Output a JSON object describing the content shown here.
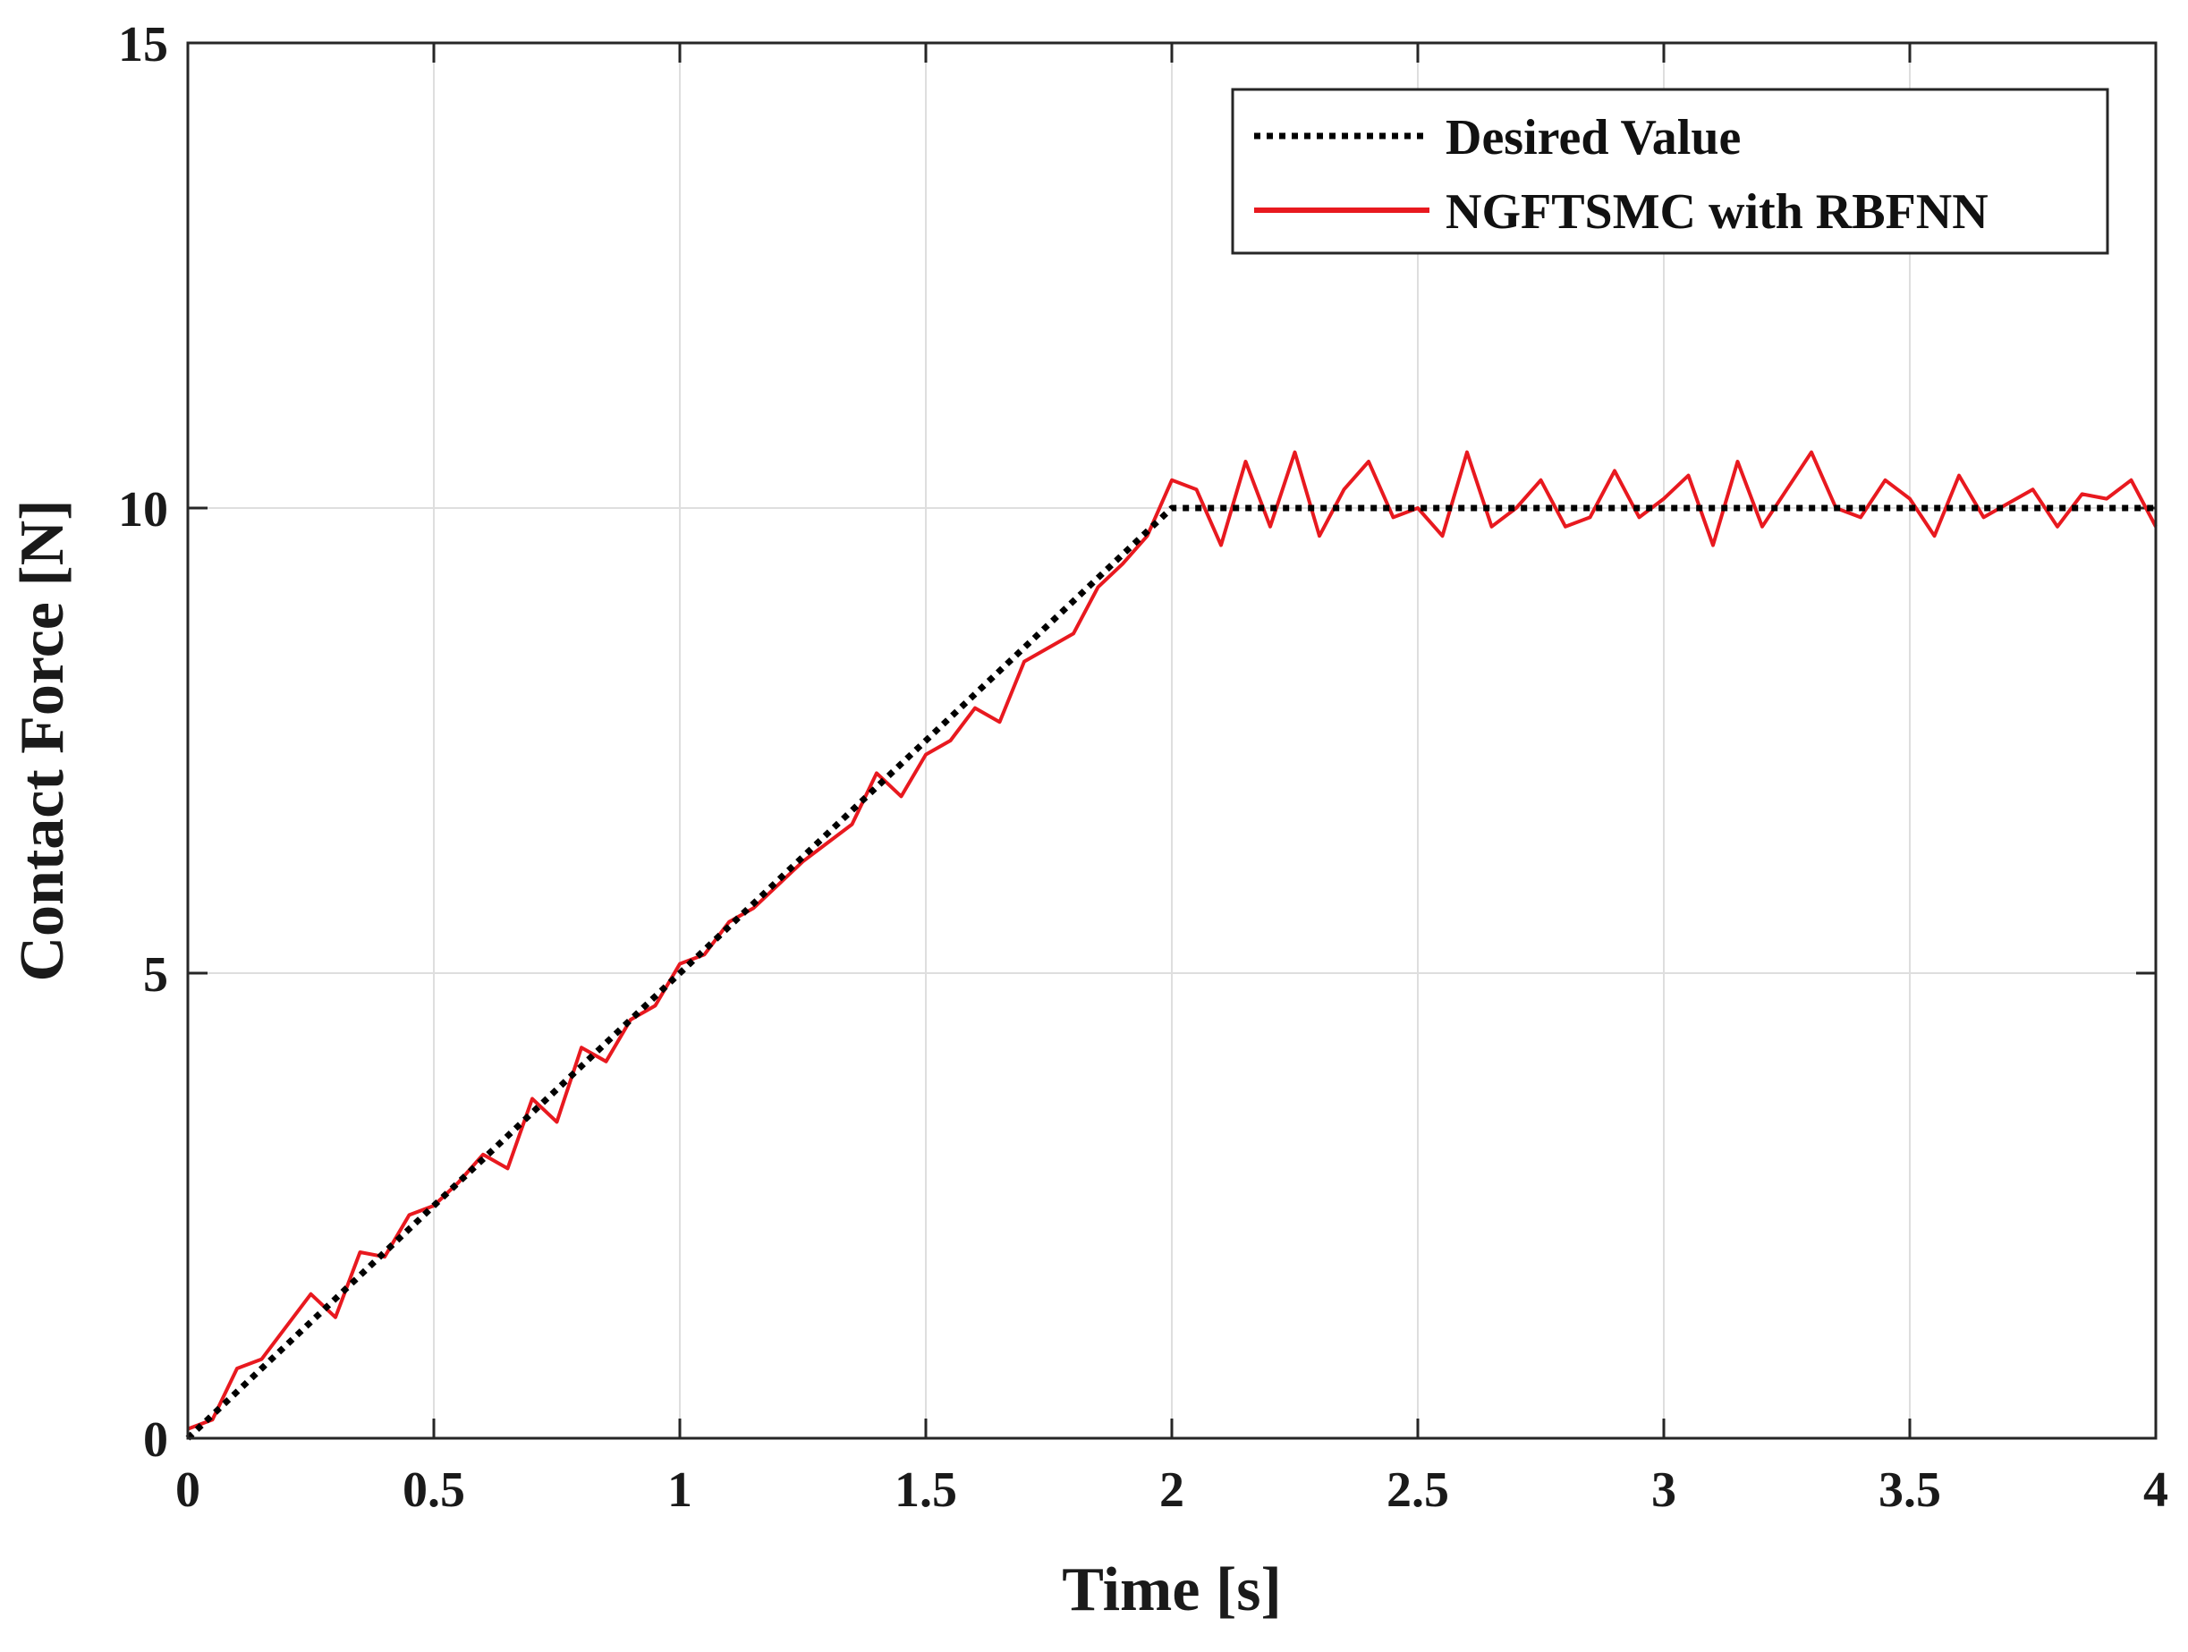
{
  "chart_data": {
    "type": "line",
    "title": "",
    "xlabel": "Time [s]",
    "ylabel": "Contact Force [N]",
    "xlim": [
      0,
      4
    ],
    "ylim": [
      0,
      15
    ],
    "xticks": [
      0,
      0.5,
      1,
      1.5,
      2,
      2.5,
      3,
      3.5,
      4
    ],
    "yticks": [
      0,
      5,
      10,
      15
    ],
    "xtick_labels": [
      "0",
      "0.5",
      "1",
      "1.5",
      "2",
      "2.5",
      "3",
      "3.5",
      "4"
    ],
    "ytick_labels": [
      "0",
      "5",
      "10",
      "15"
    ],
    "grid": true,
    "legend_position": "top-right",
    "series": [
      {
        "name": "Desired Value",
        "color": "#000000",
        "style": "dotted",
        "x": [
          0,
          2,
          4
        ],
        "y": [
          0,
          10,
          10
        ]
      },
      {
        "name": "NGFTSMC with RBFNN",
        "color": "#e8191f",
        "style": "solid",
        "x": [
          0,
          0.05,
          0.1,
          0.15,
          0.2,
          0.25,
          0.3,
          0.35,
          0.4,
          0.45,
          0.5,
          0.55,
          0.6,
          0.65,
          0.7,
          0.75,
          0.8,
          0.85,
          0.9,
          0.95,
          1,
          1.05,
          1.1,
          1.15,
          1.2,
          1.25,
          1.3,
          1.35,
          1.4,
          1.45,
          1.5,
          1.55,
          1.6,
          1.65,
          1.7,
          1.75,
          1.8,
          1.85,
          1.9,
          1.95,
          2,
          2.05,
          2.1,
          2.15,
          2.2,
          2.25,
          2.3,
          2.35,
          2.4,
          2.45,
          2.5,
          2.55,
          2.6,
          2.65,
          2.7,
          2.75,
          2.8,
          2.85,
          2.9,
          2.95,
          3,
          3.05,
          3.1,
          3.15,
          3.2,
          3.25,
          3.3,
          3.35,
          3.4,
          3.45,
          3.5,
          3.55,
          3.6,
          3.65,
          3.7,
          3.75,
          3.8,
          3.85,
          3.9,
          3.95,
          4
        ],
        "y": [
          0.1,
          0.2,
          0.75,
          0.85,
          1.2,
          1.55,
          1.3,
          2.0,
          1.95,
          2.4,
          2.5,
          2.75,
          3.05,
          2.9,
          3.65,
          3.4,
          4.2,
          4.05,
          4.5,
          4.65,
          5.1,
          5.2,
          5.55,
          5.7,
          5.95,
          6.2,
          6.4,
          6.6,
          7.15,
          6.9,
          7.35,
          7.5,
          7.85,
          7.7,
          8.35,
          8.5,
          8.65,
          9.15,
          9.4,
          9.7,
          10.3,
          10.2,
          9.6,
          10.5,
          9.8,
          10.6,
          9.7,
          10.2,
          10.5,
          9.9,
          10.0,
          9.7,
          10.6,
          9.8,
          10.0,
          10.3,
          9.8,
          9.9,
          10.4,
          9.9,
          10.1,
          10.35,
          9.6,
          10.5,
          9.8,
          10.2,
          10.6,
          10.0,
          9.9,
          10.3,
          10.1,
          9.7,
          10.35,
          9.9,
          10.05,
          10.2,
          9.8,
          10.15,
          10.1,
          10.3,
          9.8
        ]
      }
    ]
  }
}
